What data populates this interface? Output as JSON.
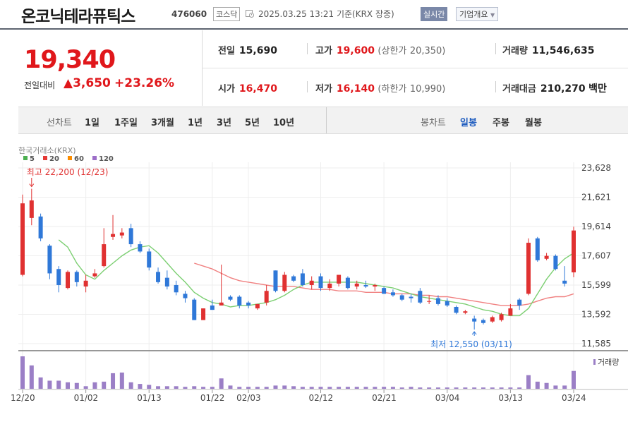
{
  "header": {
    "name": "온코닉테라퓨틱스",
    "code": "476060",
    "market": "코스닥",
    "datetime": "2025.03.25 13:21",
    "basis": "기준(KRX 장중)",
    "realtime_label": "실시간",
    "company_label": "기업개요"
  },
  "price": {
    "current": "19,340",
    "change_label": "전일대비",
    "change": "3,650",
    "change_pct": "+23.26%"
  },
  "stats": {
    "prev_label": "전일",
    "prev": "15,690",
    "high_label": "고가",
    "high": "19,600",
    "upper_label": "(상한가",
    "upper": "20,350)",
    "volume_label": "거래량",
    "volume": "11,546,635",
    "open_label": "시가",
    "open": "16,470",
    "low_label": "저가",
    "low": "16,140",
    "lower_label": "(하한가",
    "lower": "10,990)",
    "amount_label": "거래대금",
    "amount": "210,270",
    "amount_unit": "백만"
  },
  "range_bar": {
    "label": "선차트",
    "periods": [
      "1일",
      "1주일",
      "3개월",
      "1년",
      "3년",
      "5년",
      "10년"
    ],
    "candle_label": "봉차트",
    "candle_types": [
      "일봉",
      "주봉",
      "월봉"
    ],
    "candle_selected": 0
  },
  "chart_data": {
    "type": "candlestick",
    "source_label": "한국거래소(KRX)",
    "ma_legend": [
      {
        "name": "5",
        "color": "#4caf50"
      },
      {
        "name": "20",
        "color": "#e53935"
      },
      {
        "name": "60",
        "color": "#fb8c00"
      },
      {
        "name": "120",
        "color": "#9c6ec8"
      }
    ],
    "ylim": [
      11585,
      23628
    ],
    "y_ticks": [
      "23,628",
      "21,621",
      "19,614",
      "17,607",
      "15,599",
      "13,592",
      "11,585"
    ],
    "x_tick_labels": [
      "12/20",
      "01/02",
      "01/13",
      "01/22",
      "02/03",
      "02/12",
      "02/21",
      "03/04",
      "03/13",
      "03/24"
    ],
    "x_tick_index": [
      0,
      7,
      14,
      21,
      25,
      33,
      40,
      47,
      54,
      61
    ],
    "high_annotation": "최고 22,200 (12/23)",
    "high_index": 1,
    "low_annotation": "최저 12,550 (03/11)",
    "low_index": 50,
    "volume_label": "거래량",
    "candles": [
      {
        "o": 16300,
        "h": 21800,
        "l": 16200,
        "c": 21200
      },
      {
        "o": 20200,
        "h": 22200,
        "l": 19700,
        "c": 21400
      },
      {
        "o": 20300,
        "h": 20500,
        "l": 18600,
        "c": 18800
      },
      {
        "o": 18300,
        "h": 18400,
        "l": 16000,
        "c": 16400
      },
      {
        "o": 16700,
        "h": 16900,
        "l": 15100,
        "c": 15600
      },
      {
        "o": 15400,
        "h": 16600,
        "l": 15300,
        "c": 16500
      },
      {
        "o": 16500,
        "h": 16600,
        "l": 15500,
        "c": 15800
      },
      {
        "o": 15500,
        "h": 16300,
        "l": 15100,
        "c": 15900
      },
      {
        "o": 16200,
        "h": 16700,
        "l": 16100,
        "c": 16400
      },
      {
        "o": 16900,
        "h": 19500,
        "l": 16800,
        "c": 18400
      },
      {
        "o": 18900,
        "h": 20400,
        "l": 18700,
        "c": 19100
      },
      {
        "o": 19000,
        "h": 19500,
        "l": 18800,
        "c": 19200
      },
      {
        "o": 19500,
        "h": 19800,
        "l": 18200,
        "c": 18400
      },
      {
        "o": 18400,
        "h": 18600,
        "l": 17800,
        "c": 17900
      },
      {
        "o": 17900,
        "h": 18100,
        "l": 16600,
        "c": 16800
      },
      {
        "o": 16500,
        "h": 16800,
        "l": 15700,
        "c": 15800
      },
      {
        "o": 16100,
        "h": 16600,
        "l": 15300,
        "c": 15500
      },
      {
        "o": 15600,
        "h": 15900,
        "l": 14900,
        "c": 15100
      },
      {
        "o": 15000,
        "h": 15200,
        "l": 14400,
        "c": 14700
      },
      {
        "o": 14600,
        "h": 14700,
        "l": 13200,
        "c": 13200
      },
      {
        "o": 13200,
        "h": 14000,
        "l": 13200,
        "c": 14000
      },
      {
        "o": 14200,
        "h": 14600,
        "l": 13900,
        "c": 13900
      },
      {
        "o": 14200,
        "h": 17000,
        "l": 14200,
        "c": 14400
      },
      {
        "o": 14800,
        "h": 14900,
        "l": 14500,
        "c": 14600
      },
      {
        "o": 14800,
        "h": 14900,
        "l": 14000,
        "c": 14200
      },
      {
        "o": 14400,
        "h": 14500,
        "l": 14000,
        "c": 14200
      },
      {
        "o": 14000,
        "h": 14300,
        "l": 13900,
        "c": 14300
      },
      {
        "o": 14400,
        "h": 15600,
        "l": 14200,
        "c": 15200
      },
      {
        "o": 16600,
        "h": 16600,
        "l": 15100,
        "c": 15200
      },
      {
        "o": 15200,
        "h": 16500,
        "l": 15100,
        "c": 16300
      },
      {
        "o": 16200,
        "h": 16300,
        "l": 15800,
        "c": 15900
      },
      {
        "o": 16400,
        "h": 16700,
        "l": 15500,
        "c": 15600
      },
      {
        "o": 15600,
        "h": 16200,
        "l": 15300,
        "c": 15900
      },
      {
        "o": 16200,
        "h": 16400,
        "l": 15200,
        "c": 15400
      },
      {
        "o": 15400,
        "h": 16000,
        "l": 15200,
        "c": 15700
      },
      {
        "o": 15700,
        "h": 16300,
        "l": 15500,
        "c": 16300
      },
      {
        "o": 16100,
        "h": 16200,
        "l": 15300,
        "c": 15400
      },
      {
        "o": 15500,
        "h": 15900,
        "l": 15300,
        "c": 15700
      },
      {
        "o": 15600,
        "h": 15900,
        "l": 15400,
        "c": 15500
      },
      {
        "o": 15500,
        "h": 15700,
        "l": 15200,
        "c": 15600
      },
      {
        "o": 15400,
        "h": 15500,
        "l": 15000,
        "c": 15000
      },
      {
        "o": 15100,
        "h": 15300,
        "l": 14800,
        "c": 14900
      },
      {
        "o": 14900,
        "h": 15000,
        "l": 14500,
        "c": 14600
      },
      {
        "o": 14800,
        "h": 15000,
        "l": 14400,
        "c": 14700
      },
      {
        "o": 15200,
        "h": 15400,
        "l": 14300,
        "c": 14400
      },
      {
        "o": 14500,
        "h": 14900,
        "l": 14300,
        "c": 14500
      },
      {
        "o": 14700,
        "h": 14900,
        "l": 14200,
        "c": 14300
      },
      {
        "o": 14500,
        "h": 14700,
        "l": 14100,
        "c": 14200
      },
      {
        "o": 14100,
        "h": 14200,
        "l": 13600,
        "c": 13700
      },
      {
        "o": 13700,
        "h": 13900,
        "l": 13600,
        "c": 13800
      },
      {
        "o": 13300,
        "h": 13500,
        "l": 12550,
        "c": 13100
      },
      {
        "o": 13200,
        "h": 13300,
        "l": 12900,
        "c": 13000
      },
      {
        "o": 13100,
        "h": 13500,
        "l": 13000,
        "c": 13400
      },
      {
        "o": 13200,
        "h": 13700,
        "l": 13100,
        "c": 13600
      },
      {
        "o": 13500,
        "h": 14300,
        "l": 13500,
        "c": 14000
      },
      {
        "o": 14600,
        "h": 14700,
        "l": 13900,
        "c": 14200
      },
      {
        "o": 15000,
        "h": 18800,
        "l": 14900,
        "c": 18500
      },
      {
        "o": 18800,
        "h": 18900,
        "l": 17200,
        "c": 17300
      },
      {
        "o": 17400,
        "h": 17800,
        "l": 17300,
        "c": 17600
      },
      {
        "o": 17600,
        "h": 17700,
        "l": 16600,
        "c": 16700
      },
      {
        "o": 15900,
        "h": 16900,
        "l": 15500,
        "c": 15700
      },
      {
        "o": 16470,
        "h": 19600,
        "l": 16140,
        "c": 19340
      }
    ],
    "ma5": [
      null,
      null,
      null,
      null,
      18700,
      18200,
      17100,
      16300,
      16000,
      16600,
      17100,
      17600,
      18000,
      18200,
      18300,
      17800,
      17100,
      16400,
      15800,
      15100,
      14700,
      14400,
      14300,
      14100,
      14200,
      14200,
      14300,
      14400,
      14600,
      14900,
      15300,
      15600,
      15800,
      15800,
      15800,
      15800,
      15800,
      15800,
      15700,
      15600,
      15500,
      15400,
      15200,
      15000,
      14800,
      14700,
      14600,
      14500,
      14400,
      14300,
      14100,
      13900,
      13800,
      13600,
      13500,
      13500,
      14000,
      15000,
      16000,
      16800,
      17400,
      17800
    ],
    "ma20": [
      null,
      null,
      null,
      null,
      null,
      null,
      null,
      null,
      null,
      null,
      null,
      null,
      null,
      null,
      null,
      null,
      null,
      null,
      null,
      17100,
      16900,
      16700,
      16400,
      16100,
      15900,
      15800,
      15700,
      15600,
      15500,
      15500,
      15500,
      15400,
      15300,
      15300,
      15300,
      15200,
      15200,
      15200,
      15100,
      15100,
      15100,
      15000,
      15000,
      15000,
      14900,
      14900,
      14800,
      14800,
      14700,
      14600,
      14500,
      14400,
      14300,
      14200,
      14200,
      14200,
      14300,
      14500,
      14700,
      14800,
      14800,
      15000
    ],
    "volumes": [
      100,
      72,
      35,
      25,
      25,
      20,
      18,
      8,
      20,
      22,
      48,
      50,
      20,
      15,
      12,
      8,
      8,
      8,
      6,
      8,
      6,
      6,
      32,
      10,
      6,
      6,
      6,
      6,
      10,
      10,
      8,
      6,
      6,
      6,
      6,
      6,
      6,
      6,
      6,
      6,
      6,
      6,
      4,
      6,
      4,
      4,
      4,
      4,
      4,
      4,
      4,
      4,
      4,
      4,
      4,
      4,
      42,
      22,
      18,
      10,
      10,
      55
    ]
  }
}
